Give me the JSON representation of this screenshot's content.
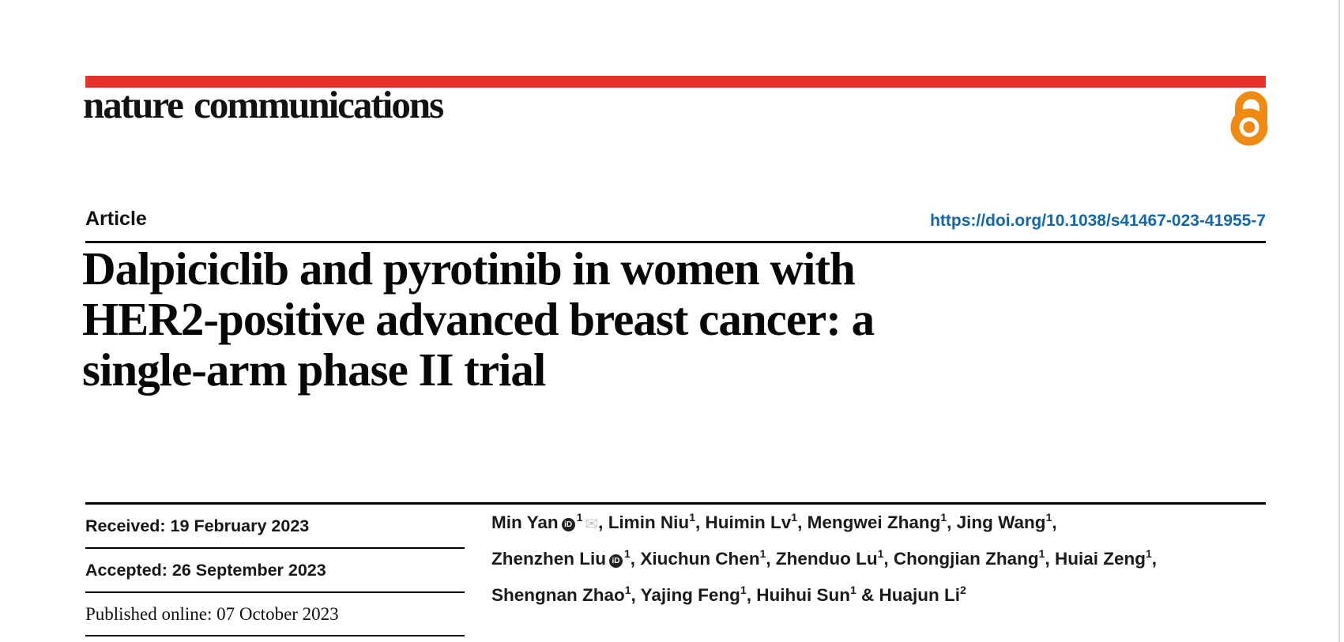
{
  "colors": {
    "accent-red": "#e5332b",
    "oa-orange": "#ef8b12",
    "link-blue": "#1467a9"
  },
  "brand": {
    "logo": "nature communications",
    "open_access_icon": "open-access-lock-icon"
  },
  "article": {
    "kicker": "Article",
    "doi": "https://doi.org/10.1038/s41467-023-41955-7",
    "title_lines": [
      "Dalpiciclib and pyrotinib in women with",
      "HER2-positive advanced breast cancer: a",
      "single-arm phase II trial"
    ]
  },
  "dates": [
    {
      "text": "Received: 19 February 2023"
    },
    {
      "text": "Accepted: 26 September 2023"
    },
    {
      "text": "Published online: 07 October 2023"
    }
  ],
  "authors": {
    "lines": [
      [
        {
          "name": "Min Yan",
          "orcid": true,
          "sup": "1",
          "envelope": true,
          "sep": ", "
        },
        {
          "name": "Limin Niu",
          "sup": "1",
          "sep": ", "
        },
        {
          "name": "Huimin Lv",
          "sup": "1",
          "sep": ", "
        },
        {
          "name": "Mengwei Zhang",
          "sup": "1",
          "sep": ", "
        },
        {
          "name": "Jing Wang",
          "sup": "1",
          "sep": ","
        }
      ],
      [
        {
          "name": "Zhenzhen Liu",
          "orcid": true,
          "sup": "1",
          "sep": ", "
        },
        {
          "name": "Xiuchun Chen",
          "sup": "1",
          "sep": ", "
        },
        {
          "name": "Zhenduo Lu",
          "sup": "1",
          "sep": ", "
        },
        {
          "name": "Chongjian Zhang",
          "sup": "1",
          "sep": ", "
        },
        {
          "name": "Huiai Zeng",
          "sup": "1",
          "sep": ","
        }
      ],
      [
        {
          "name": "Shengnan Zhao",
          "sup": "1",
          "sep": ", "
        },
        {
          "name": "Yajing Feng",
          "sup": "1",
          "sep": ", "
        },
        {
          "name": "Huihui Sun",
          "sup": "1",
          "sep": " & "
        },
        {
          "name": "Huajun Li",
          "sup": "2"
        }
      ]
    ]
  }
}
